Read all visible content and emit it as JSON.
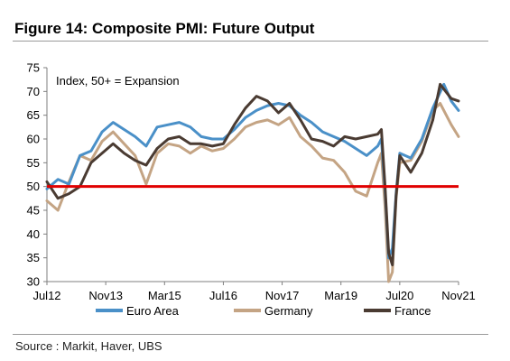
{
  "figure": {
    "title": "Figure 14: Composite PMI: Future Output",
    "source": "Source : Markit, Haver, UBS"
  },
  "colors": {
    "euro_area": "#4a90c8",
    "germany": "#c4a484",
    "france": "#4a3b32",
    "threshold": "#e00000",
    "axis": "#7f7f7f"
  },
  "chart_data": {
    "type": "line",
    "annotation": "Index, 50+ = Expansion",
    "y_ticks": [
      30,
      35,
      40,
      45,
      50,
      55,
      60,
      65,
      70,
      75
    ],
    "ylim": [
      30,
      75
    ],
    "x_ticks": [
      "Jul12",
      "Nov13",
      "Mar15",
      "Jul16",
      "Nov17",
      "Mar19",
      "Jul20",
      "Nov21"
    ],
    "threshold": 50,
    "legend_position": "bottom",
    "series": [
      {
        "name": "Euro Area",
        "points": [
          [
            "2012-07",
            49.5
          ],
          [
            "2012-10",
            51.5
          ],
          [
            "2013-01",
            50.5
          ],
          [
            "2013-04",
            56.5
          ],
          [
            "2013-07",
            57.5
          ],
          [
            "2013-10",
            61.5
          ],
          [
            "2014-01",
            63.5
          ],
          [
            "2014-04",
            62.0
          ],
          [
            "2014-07",
            60.5
          ],
          [
            "2014-10",
            58.5
          ],
          [
            "2015-01",
            62.5
          ],
          [
            "2015-04",
            63.0
          ],
          [
            "2015-07",
            63.5
          ],
          [
            "2015-10",
            62.5
          ],
          [
            "2016-01",
            60.5
          ],
          [
            "2016-04",
            60.0
          ],
          [
            "2016-07",
            60.0
          ],
          [
            "2016-10",
            62.0
          ],
          [
            "2017-01",
            64.5
          ],
          [
            "2017-04",
            66.0
          ],
          [
            "2017-07",
            67.0
          ],
          [
            "2017-10",
            67.5
          ],
          [
            "2018-01",
            67.0
          ],
          [
            "2018-04",
            65.0
          ],
          [
            "2018-07",
            63.5
          ],
          [
            "2018-10",
            61.5
          ],
          [
            "2019-01",
            60.5
          ],
          [
            "2019-04",
            59.5
          ],
          [
            "2019-07",
            58.0
          ],
          [
            "2019-10",
            56.5
          ],
          [
            "2020-01",
            58.5
          ],
          [
            "2020-02",
            60.0
          ],
          [
            "2020-03",
            49.0
          ],
          [
            "2020-04",
            35.0
          ],
          [
            "2020-05",
            37.0
          ],
          [
            "2020-06",
            48.5
          ],
          [
            "2020-07",
            57.0
          ],
          [
            "2020-10",
            56.0
          ],
          [
            "2021-01",
            60.0
          ],
          [
            "2021-04",
            66.5
          ],
          [
            "2021-07",
            71.5
          ],
          [
            "2021-09",
            68.0
          ],
          [
            "2021-11",
            66.0
          ]
        ]
      },
      {
        "name": "Germany",
        "points": [
          [
            "2012-07",
            47.0
          ],
          [
            "2012-10",
            45.0
          ],
          [
            "2013-01",
            51.0
          ],
          [
            "2013-04",
            56.5
          ],
          [
            "2013-07",
            55.5
          ],
          [
            "2013-10",
            59.5
          ],
          [
            "2014-01",
            61.5
          ],
          [
            "2014-04",
            59.0
          ],
          [
            "2014-07",
            56.5
          ],
          [
            "2014-10",
            50.5
          ],
          [
            "2015-01",
            57.0
          ],
          [
            "2015-04",
            59.0
          ],
          [
            "2015-07",
            58.5
          ],
          [
            "2015-10",
            57.0
          ],
          [
            "2016-01",
            58.5
          ],
          [
            "2016-04",
            57.5
          ],
          [
            "2016-07",
            58.0
          ],
          [
            "2016-10",
            60.0
          ],
          [
            "2017-01",
            62.5
          ],
          [
            "2017-04",
            63.5
          ],
          [
            "2017-07",
            64.0
          ],
          [
            "2017-10",
            63.0
          ],
          [
            "2018-01",
            64.5
          ],
          [
            "2018-04",
            60.5
          ],
          [
            "2018-07",
            58.5
          ],
          [
            "2018-10",
            56.0
          ],
          [
            "2019-01",
            55.5
          ],
          [
            "2019-04",
            53.0
          ],
          [
            "2019-07",
            49.0
          ],
          [
            "2019-10",
            48.0
          ],
          [
            "2020-01",
            55.0
          ],
          [
            "2020-02",
            57.0
          ],
          [
            "2020-03",
            45.5
          ],
          [
            "2020-04",
            30.0
          ],
          [
            "2020-05",
            32.0
          ],
          [
            "2020-06",
            47.5
          ],
          [
            "2020-07",
            55.0
          ],
          [
            "2020-10",
            55.5
          ],
          [
            "2021-01",
            59.5
          ],
          [
            "2021-04",
            66.0
          ],
          [
            "2021-06",
            67.5
          ],
          [
            "2021-09",
            63.0
          ],
          [
            "2021-11",
            60.5
          ]
        ]
      },
      {
        "name": "France",
        "points": [
          [
            "2012-07",
            51.0
          ],
          [
            "2012-10",
            47.5
          ],
          [
            "2013-01",
            48.5
          ],
          [
            "2013-04",
            50.0
          ],
          [
            "2013-07",
            55.0
          ],
          [
            "2013-10",
            57.0
          ],
          [
            "2014-01",
            59.0
          ],
          [
            "2014-04",
            57.0
          ],
          [
            "2014-07",
            55.5
          ],
          [
            "2014-10",
            54.5
          ],
          [
            "2015-01",
            58.0
          ],
          [
            "2015-04",
            60.0
          ],
          [
            "2015-07",
            60.5
          ],
          [
            "2015-10",
            59.0
          ],
          [
            "2016-01",
            59.0
          ],
          [
            "2016-04",
            58.5
          ],
          [
            "2016-07",
            59.0
          ],
          [
            "2016-10",
            63.0
          ],
          [
            "2017-01",
            66.5
          ],
          [
            "2017-04",
            69.0
          ],
          [
            "2017-07",
            68.0
          ],
          [
            "2017-10",
            65.5
          ],
          [
            "2018-01",
            67.5
          ],
          [
            "2018-04",
            64.0
          ],
          [
            "2018-07",
            60.0
          ],
          [
            "2018-10",
            59.5
          ],
          [
            "2019-01",
            58.5
          ],
          [
            "2019-04",
            60.5
          ],
          [
            "2019-07",
            60.0
          ],
          [
            "2019-10",
            60.5
          ],
          [
            "2020-01",
            61.0
          ],
          [
            "2020-02",
            62.0
          ],
          [
            "2020-03",
            50.0
          ],
          [
            "2020-04",
            36.0
          ],
          [
            "2020-05",
            33.5
          ],
          [
            "2020-06",
            48.0
          ],
          [
            "2020-07",
            56.5
          ],
          [
            "2020-10",
            53.0
          ],
          [
            "2021-01",
            57.0
          ],
          [
            "2021-04",
            64.0
          ],
          [
            "2021-06",
            71.5
          ],
          [
            "2021-09",
            68.5
          ],
          [
            "2021-11",
            68.0
          ]
        ]
      }
    ]
  }
}
